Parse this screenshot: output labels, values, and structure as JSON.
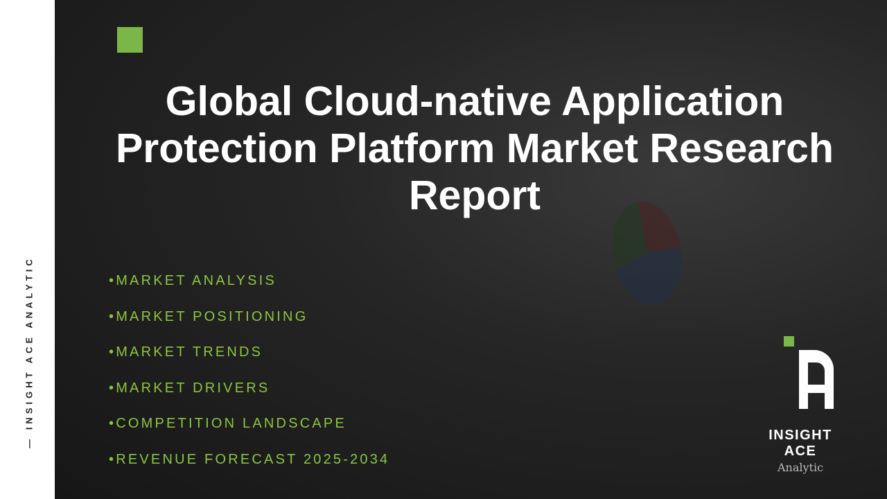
{
  "sidebar": {
    "vertical_text": "— INSIGHT ACE ANALYTIC"
  },
  "title": [
    "Global Cloud-native Application",
    "Protection Platform Market Research",
    "Report"
  ],
  "bullets": [
    "•MARKET ANALYSIS",
    "•MARKET POSITIONING",
    "•MARKET TRENDS",
    "•MARKET DRIVERS",
    "•COMPETITION LANDSCAPE",
    "•REVENUE FORECAST 2025-2034"
  ],
  "logo": {
    "name": "INSIGHT ACE",
    "sub": "Analytic"
  },
  "colors": {
    "accent": "#7ab648",
    "bullet_text": "#8cc63f",
    "background": "#1a1a1a"
  }
}
